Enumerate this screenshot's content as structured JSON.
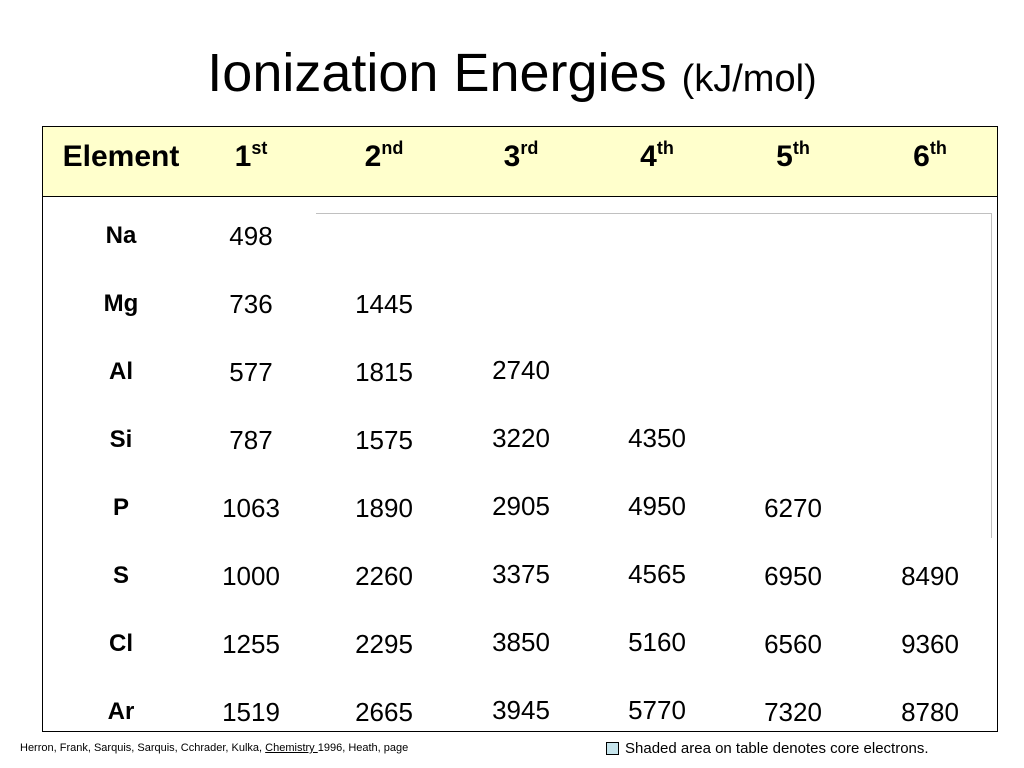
{
  "title": {
    "main": "Ionization Energies",
    "unit": "(kJ/mol)"
  },
  "header": {
    "element": "Element",
    "ordinals": [
      {
        "num": "1",
        "sup": "st"
      },
      {
        "num": "2",
        "sup": "nd"
      },
      {
        "num": "3",
        "sup": "rd"
      },
      {
        "num": "4",
        "sup": "th"
      },
      {
        "num": "5",
        "sup": "th"
      },
      {
        "num": "6",
        "sup": "th"
      }
    ]
  },
  "rows": [
    {
      "el": "Na",
      "v": [
        "498",
        "",
        "",
        "",
        "",
        ""
      ]
    },
    {
      "el": "Mg",
      "v": [
        "736",
        "1445",
        "",
        "",
        "",
        ""
      ]
    },
    {
      "el": "Al",
      "v": [
        "577",
        "1815",
        "2740",
        "",
        "",
        ""
      ]
    },
    {
      "el": "Si",
      "v": [
        "787",
        "1575",
        "3220",
        "4350",
        "",
        ""
      ]
    },
    {
      "el": "P",
      "v": [
        "1063",
        "1890",
        "2905",
        "4950",
        "6270",
        ""
      ]
    },
    {
      "el": "S",
      "v": [
        "1000",
        "2260",
        "3375",
        "4565",
        "6950",
        "8490"
      ]
    },
    {
      "el": "Cl",
      "v": [
        "1255",
        "2295",
        "3850",
        "5160",
        "6560",
        "9360"
      ]
    },
    {
      "el": "Ar",
      "v": [
        "1519",
        "2665",
        "3945",
        "5770",
        "7320",
        "8780"
      ]
    }
  ],
  "footer": {
    "citation_before": "Herron, Frank, Sarquis, Sarquis, Cchrader, Kulka, ",
    "citation_link": "Chemistry ",
    "citation_after": "1996, Heath, page",
    "legend": "Shaded area on table denotes core electrons."
  }
}
